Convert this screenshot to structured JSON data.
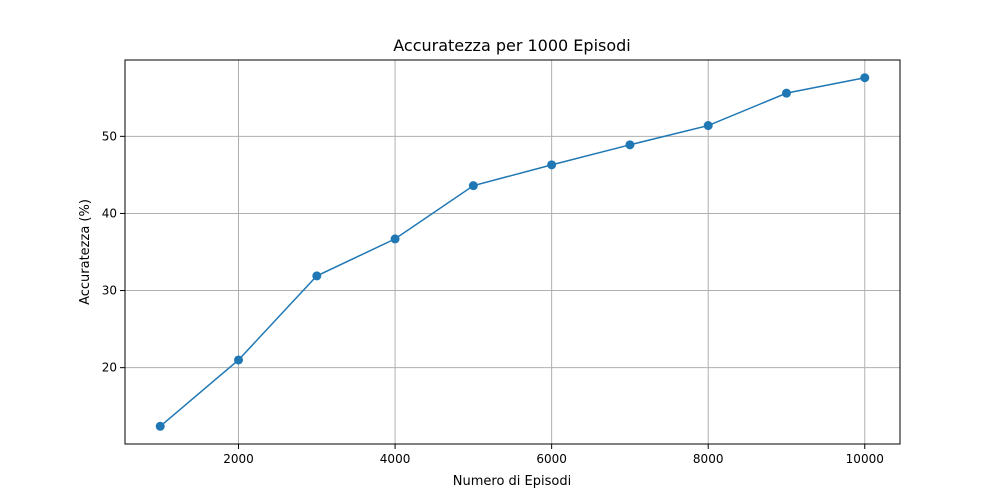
{
  "chart_data": {
    "type": "line",
    "title": "Accuratezza per 1000 Episodi",
    "xlabel": "Numero di Episodi",
    "ylabel": "Accuratezza (%)",
    "x": [
      1000,
      2000,
      3000,
      4000,
      5000,
      6000,
      7000,
      8000,
      9000,
      10000
    ],
    "series": [
      {
        "values": [
          12.4,
          21.0,
          31.9,
          36.7,
          43.6,
          46.3,
          48.9,
          51.4,
          55.6,
          57.6
        ]
      }
    ],
    "xlim": [
      550,
      10450
    ],
    "ylim": [
      10.1,
      59.9
    ],
    "xticks": [
      2000,
      4000,
      6000,
      8000,
      10000
    ],
    "yticks": [
      20,
      30,
      40,
      50
    ],
    "grid": true,
    "marker": "circle",
    "line_color": "#1f77b4"
  }
}
